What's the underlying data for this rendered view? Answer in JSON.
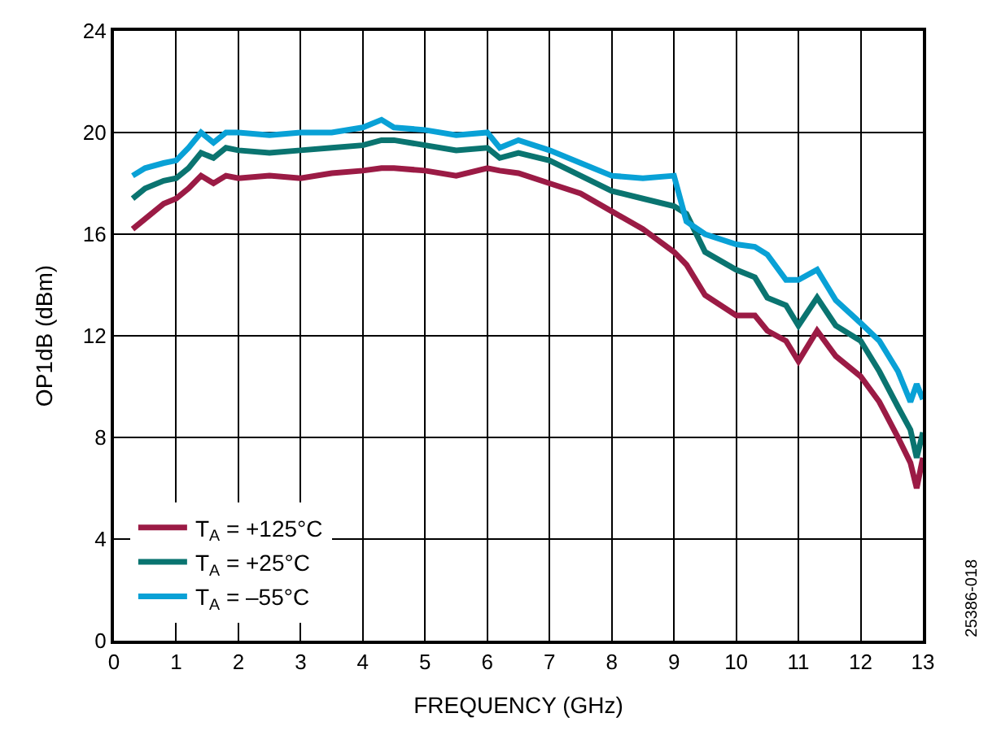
{
  "chart_data": {
    "type": "line",
    "xlabel": "FREQUENCY (GHz)",
    "ylabel": "OP1dB (dBm)",
    "x": [
      0.3,
      0.5,
      0.8,
      1.0,
      1.2,
      1.4,
      1.6,
      1.8,
      2.0,
      2.5,
      3.0,
      3.5,
      4.0,
      4.3,
      4.5,
      5.0,
      5.5,
      6.0,
      6.2,
      6.5,
      7.0,
      7.5,
      8.0,
      8.5,
      9.0,
      9.2,
      9.5,
      10.0,
      10.3,
      10.5,
      10.8,
      11.0,
      11.3,
      11.6,
      12.0,
      12.3,
      12.6,
      12.8,
      12.9,
      13.0
    ],
    "series": [
      {
        "name": "T$_{A}$ = +125°C",
        "color": "#9b1b45",
        "values": [
          16.2,
          16.6,
          17.2,
          17.4,
          17.8,
          18.3,
          18.0,
          18.3,
          18.2,
          18.3,
          18.2,
          18.4,
          18.5,
          18.6,
          18.6,
          18.5,
          18.3,
          18.6,
          18.5,
          18.4,
          18.0,
          17.6,
          16.9,
          16.2,
          15.3,
          14.8,
          13.6,
          12.8,
          12.8,
          12.2,
          11.8,
          11.0,
          12.2,
          11.2,
          10.4,
          9.4,
          8.0,
          7.0,
          6.0,
          7.2
        ]
      },
      {
        "name": "T$_{A}$ = +25°C",
        "color": "#0a7470",
        "values": [
          17.4,
          17.8,
          18.1,
          18.2,
          18.6,
          19.2,
          19.0,
          19.4,
          19.3,
          19.2,
          19.3,
          19.4,
          19.5,
          19.7,
          19.7,
          19.5,
          19.3,
          19.4,
          19.0,
          19.2,
          18.9,
          18.3,
          17.7,
          17.4,
          17.1,
          16.8,
          15.3,
          14.6,
          14.3,
          13.5,
          13.2,
          12.4,
          13.5,
          12.4,
          11.8,
          10.6,
          9.2,
          8.3,
          7.2,
          8.2
        ]
      },
      {
        "name": "T$_{A}$ = –55°C",
        "color": "#09a1d6",
        "values": [
          18.3,
          18.6,
          18.8,
          18.9,
          19.4,
          20.0,
          19.6,
          20.0,
          20.0,
          19.9,
          20.0,
          20.0,
          20.2,
          20.5,
          20.2,
          20.1,
          19.9,
          20.0,
          19.4,
          19.7,
          19.3,
          18.8,
          18.3,
          18.2,
          18.3,
          16.5,
          16.0,
          15.6,
          15.5,
          15.2,
          14.2,
          14.2,
          14.6,
          13.4,
          12.5,
          11.8,
          10.6,
          9.4,
          10.1,
          9.5
        ]
      }
    ],
    "xlim": [
      0,
      13
    ],
    "xticks": [
      0,
      1,
      2,
      3,
      4,
      5,
      6,
      7,
      8,
      9,
      10,
      11,
      12,
      13
    ],
    "ylim": [
      0,
      24
    ],
    "yticks": [
      0,
      4,
      8,
      12,
      16,
      20,
      24
    ],
    "grid": true,
    "legend": "bottom left",
    "marker": "none",
    "line_style": "solid",
    "annotations": [
      "25386-018"
    ]
  }
}
